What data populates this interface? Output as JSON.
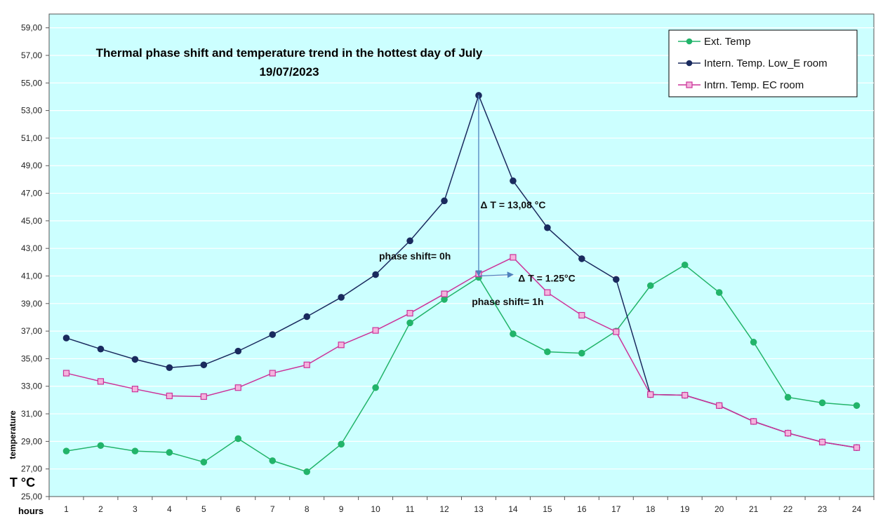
{
  "colors": {
    "background": "#ffffff",
    "plot_bg": "#ccffff",
    "grid": "#ffffff",
    "axis": "#555555",
    "arrow": "#4f81bd",
    "ext": "#22b46a",
    "lowe": "#1a2a5e",
    "ec": "#cc3399",
    "ec_fill": "#f4b3dd"
  },
  "chart_data": {
    "type": "line",
    "title_line1": "Thermal phase shift and temperature trend in the hottest day of July",
    "title_line2": "19/07/2023",
    "xlabel": "hours",
    "ylabel": "temperature",
    "yunit": "T °C",
    "ylim": [
      25,
      60
    ],
    "yticks": [
      "25,00",
      "27,00",
      "29,00",
      "31,00",
      "33,00",
      "35,00",
      "37,00",
      "39,00",
      "41,00",
      "43,00",
      "45,00",
      "47,00",
      "49,00",
      "51,00",
      "53,00",
      "55,00",
      "57,00",
      "59,00"
    ],
    "x": [
      1,
      2,
      3,
      4,
      5,
      6,
      7,
      8,
      9,
      10,
      11,
      12,
      13,
      14,
      15,
      16,
      17,
      18,
      19,
      20,
      21,
      22,
      23,
      24
    ],
    "grid": true,
    "legend_position": "top-right",
    "series": [
      {
        "name": "Ext. Temp",
        "color_key": "ext",
        "marker": "circle",
        "values": [
          28.3,
          28.7,
          28.3,
          28.2,
          27.5,
          29.2,
          27.6,
          26.8,
          28.8,
          32.9,
          37.6,
          39.3,
          40.9,
          36.8,
          35.5,
          35.4,
          37.0,
          40.3,
          41.8,
          39.8,
          36.2,
          32.2,
          31.8,
          31.6
        ]
      },
      {
        "name": "Intern. Temp. Low_E room",
        "color_key": "lowe",
        "marker": "circle",
        "values": [
          36.5,
          35.7,
          34.95,
          34.35,
          34.55,
          35.55,
          36.75,
          38.05,
          39.45,
          41.1,
          43.55,
          46.45,
          54.1,
          47.9,
          44.5,
          42.25,
          40.75,
          32.4,
          32.35,
          31.6,
          30.45,
          29.6,
          28.95,
          28.55
        ]
      },
      {
        "name": "Intrn. Temp. EC room",
        "color_key": "ec",
        "marker": "square",
        "values": [
          33.95,
          33.35,
          32.8,
          32.3,
          32.25,
          32.9,
          33.95,
          34.55,
          36.0,
          37.05,
          38.3,
          39.7,
          41.15,
          42.35,
          39.8,
          38.15,
          36.95,
          32.4,
          32.35,
          31.6,
          30.45,
          29.6,
          28.95,
          28.55
        ]
      }
    ],
    "annotations": [
      {
        "text": "Δ T = 13,08 °C",
        "x": 13.05,
        "y": 45.9
      },
      {
        "text": "phase shift= 0h",
        "x": 10.1,
        "y": 42.2
      },
      {
        "text": "Δ T = 1.25°C",
        "x": 14.15,
        "y": 40.6
      },
      {
        "text": "phase shift= 1h",
        "x": 12.8,
        "y": 38.9
      }
    ],
    "arrows": [
      {
        "from": [
          13,
          54.1
        ],
        "to": [
          13,
          41.0
        ]
      },
      {
        "from": [
          13,
          41.0
        ],
        "to": [
          14,
          41.1
        ]
      }
    ]
  }
}
